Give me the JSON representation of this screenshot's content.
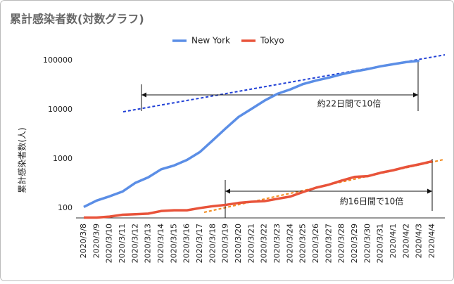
{
  "chart_data": {
    "type": "line",
    "title": "累計感染者数(対数グラフ)",
    "y_label": "累計感染者数(人)",
    "log_scale": true,
    "legend": "top",
    "categories": [
      "2020/3/8",
      "2020/3/9",
      "2020/3/10",
      "2020/3/11",
      "2020/3/12",
      "2020/3/13",
      "2020/3/14",
      "2020/3/15",
      "2020/3/16",
      "2020/3/17",
      "2020/3/18",
      "2020/3/19",
      "2020/3/20",
      "2020/3/21",
      "2020/3/22",
      "2020/3/23",
      "2020/3/24",
      "2020/3/25",
      "2020/3/26",
      "2020/3/27",
      "2020/3/28",
      "2020/3/29",
      "2020/3/30",
      "2020/3/31",
      "2020/4/1",
      "2020/4/2",
      "2020/4/3",
      "2020/4/4"
    ],
    "series": [
      {
        "name": "New York",
        "color": "#5b8ee6",
        "values": [
          105,
          142,
          173,
          216,
          325,
          421,
          613,
          732,
          950,
          1374,
          2382,
          4152,
          7102,
          10356,
          15168,
          20875,
          25665,
          33066,
          38987,
          44635,
          52318,
          59513,
          66497,
          75795,
          83712,
          92381,
          98000,
          null
        ]
      },
      {
        "name": "Tokyo",
        "color": "#e8533a",
        "values": [
          64,
          64,
          67,
          73,
          75,
          77,
          87,
          90,
          90,
          100,
          109,
          116,
          127,
          134,
          138,
          154,
          171,
          212,
          259,
          299,
          362,
          430,
          443,
          521,
          587,
          684,
          773,
          891
        ]
      }
    ],
    "ylim": [
      63,
      143000
    ],
    "yticks": [
      100,
      1000,
      10000,
      100000
    ],
    "annotations": [
      "約22日間で10倍",
      "約16日間で10倍"
    ]
  }
}
